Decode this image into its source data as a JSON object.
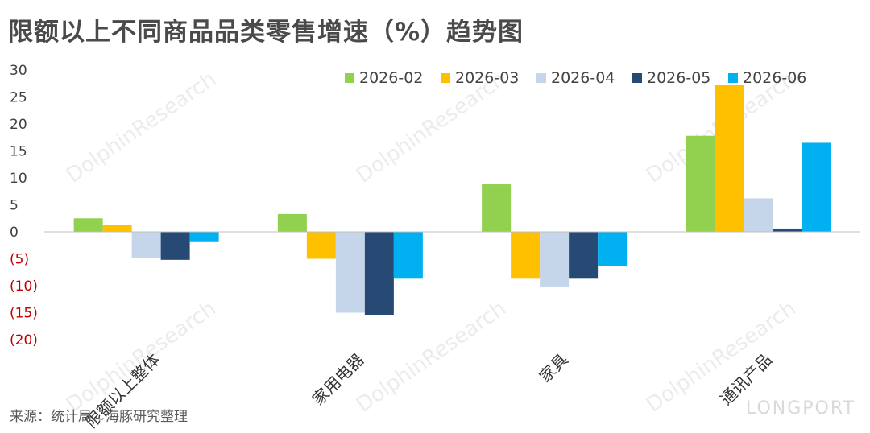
{
  "chart_data": {
    "type": "bar",
    "title": "限额以上不同商品品类零售增速（%）趋势图",
    "categories": [
      "限额以上整体",
      "家用电器",
      "家具",
      "通讯产品"
    ],
    "series": [
      {
        "name": "2026-02",
        "color": "#92d050",
        "values": [
          2.5,
          3.3,
          8.8,
          17.8
        ]
      },
      {
        "name": "2026-03",
        "color": "#ffc000",
        "values": [
          1.2,
          -5.0,
          -8.7,
          27.3
        ]
      },
      {
        "name": "2026-04",
        "color": "#c5d5ea",
        "values": [
          -4.9,
          -15.0,
          -10.3,
          6.2
        ]
      },
      {
        "name": "2026-05",
        "color": "#264a73",
        "values": [
          -5.2,
          -15.5,
          -8.7,
          0.6
        ]
      },
      {
        "name": "2026-06",
        "color": "#00b0f0",
        "values": [
          -1.9,
          -8.7,
          -6.4,
          16.5
        ]
      }
    ],
    "yticks": [
      30,
      25,
      20,
      15,
      10,
      5,
      0,
      -5,
      -10,
      -15,
      -20
    ],
    "ytick_labels": [
      "30",
      "25",
      "20",
      "15",
      "10",
      "5",
      "0",
      "(5)",
      "(10)",
      "(15)",
      "(20)"
    ],
    "ylim": [
      -20,
      30
    ],
    "negative_tick_color": "#c00000",
    "legend_position": "top-right"
  },
  "source_text": "来源：统计局、海豚研究整理",
  "watermark_text": "DolphinResearch",
  "logo_text": "LONGPORT"
}
